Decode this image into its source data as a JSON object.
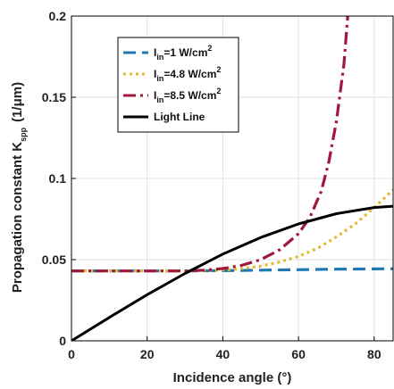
{
  "chart_data": {
    "type": "line",
    "xlabel": "Incidence angle (°)",
    "ylabel_main": "Propagation constant K",
    "ylabel_sub": "spp",
    "ylabel_unit": "(1/μm)",
    "xlim": [
      0,
      85
    ],
    "ylim": [
      0,
      0.2
    ],
    "xticks": [
      0,
      20,
      40,
      60,
      80
    ],
    "xtick_labels": [
      "0",
      "20",
      "40",
      "60",
      "80"
    ],
    "yticks": [
      0,
      0.05,
      0.1,
      0.15,
      0.2
    ],
    "ytick_labels": [
      "0",
      "0.05",
      "0.1",
      "0.15",
      "0.2"
    ],
    "grid": true,
    "legend_position": "top-left",
    "series": [
      {
        "name": "I_in=1 W/cm^2",
        "label_parts": {
          "main": "I",
          "sub": "in",
          "rest": "=1 W/cm",
          "sup": "2"
        },
        "color": "#1f77b4",
        "style": "dashed",
        "x": [
          0,
          10,
          20,
          30,
          40,
          50,
          60,
          70,
          80,
          85
        ],
        "y": [
          0.043,
          0.043,
          0.043,
          0.043,
          0.0432,
          0.0435,
          0.0438,
          0.0441,
          0.0443,
          0.0444
        ]
      },
      {
        "name": "I_in=4.8 W/cm^2",
        "label_parts": {
          "main": "I",
          "sub": "in",
          "rest": "=4.8 W/cm",
          "sup": "2"
        },
        "color": "#e6b830",
        "style": "dotted",
        "x": [
          0,
          10,
          20,
          30,
          40,
          45,
          50,
          55,
          60,
          65,
          70,
          75,
          80,
          85
        ],
        "y": [
          0.043,
          0.043,
          0.043,
          0.043,
          0.0435,
          0.0445,
          0.046,
          0.0485,
          0.052,
          0.057,
          0.064,
          0.072,
          0.082,
          0.093
        ]
      },
      {
        "name": "I_in=8.5 W/cm^2",
        "label_parts": {
          "main": "I",
          "sub": "in",
          "rest": "=8.5 W/cm",
          "sup": "2"
        },
        "color": "#a0183a",
        "style": "dashdot",
        "x": [
          0,
          10,
          20,
          30,
          35,
          40,
          45,
          50,
          55,
          60,
          63,
          66,
          68,
          70,
          72,
          73
        ],
        "y": [
          0.043,
          0.043,
          0.043,
          0.043,
          0.0435,
          0.0445,
          0.0465,
          0.05,
          0.056,
          0.066,
          0.076,
          0.092,
          0.11,
          0.135,
          0.17,
          0.2
        ]
      },
      {
        "name": "Light Line",
        "label_parts": {
          "main": "Light Line",
          "sub": "",
          "rest": "",
          "sup": ""
        },
        "color": "#000000",
        "style": "solid",
        "x": [
          0,
          10,
          20,
          30,
          40,
          50,
          60,
          70,
          80,
          85
        ],
        "y": [
          0.0,
          0.0144,
          0.0284,
          0.0415,
          0.0534,
          0.0636,
          0.072,
          0.0783,
          0.0821,
          0.0829
        ]
      }
    ]
  }
}
